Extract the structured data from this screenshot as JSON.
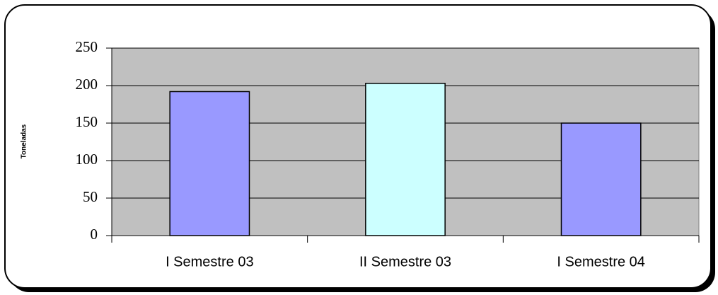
{
  "chart_data": {
    "type": "bar",
    "y_label": "Toneladas",
    "categories": [
      "I Semestre 03",
      "II Semestre 03",
      "I Semestre 04"
    ],
    "values": [
      192,
      203,
      150
    ],
    "colors": [
      "#9999ff",
      "#ccffff",
      "#9999ff"
    ],
    "ylim": [
      0,
      250
    ],
    "yticks": [
      0,
      50,
      100,
      150,
      200,
      250
    ],
    "grid": true
  }
}
